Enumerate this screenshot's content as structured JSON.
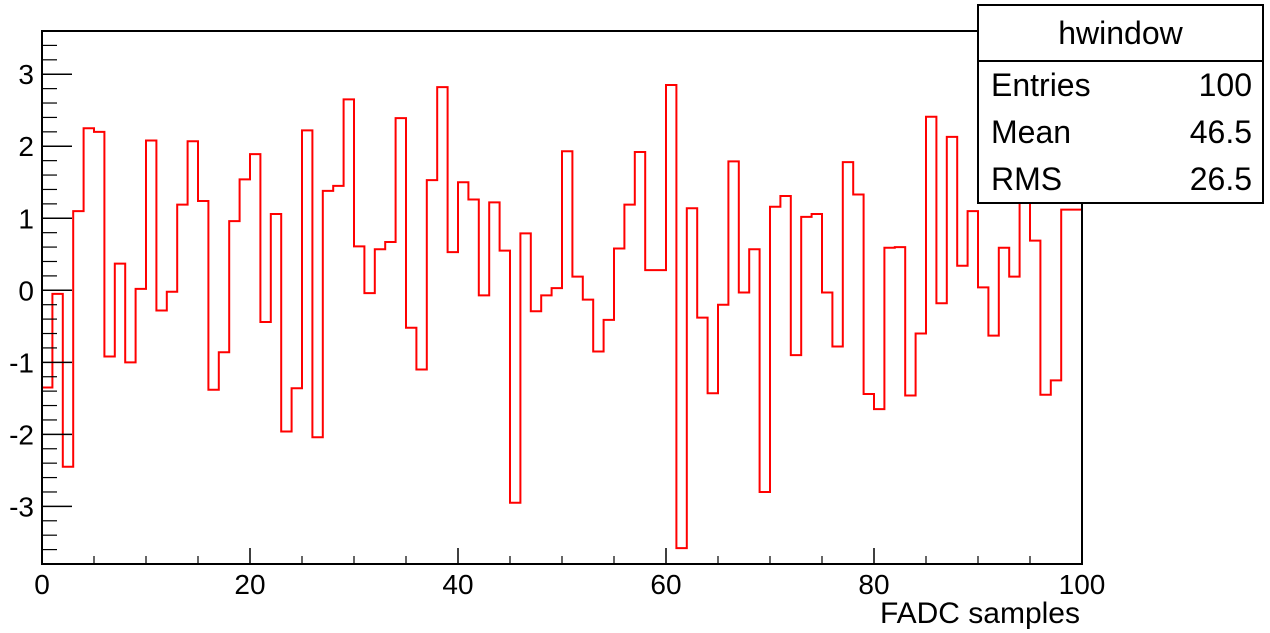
{
  "chart_data": {
    "type": "histogram",
    "title": "",
    "xlabel": "FADC samples",
    "ylabel": "",
    "xlim": [
      0,
      100
    ],
    "ylim": [
      -3.8,
      3.6
    ],
    "x_ticks": [
      0,
      20,
      40,
      60,
      80,
      100
    ],
    "y_ticks": [
      -3,
      -2,
      -1,
      0,
      1,
      2,
      3
    ],
    "line_color": "#ff0000",
    "bin_width": 1,
    "values": [
      -1.35,
      -0.05,
      -2.45,
      1.1,
      2.25,
      2.2,
      -0.92,
      0.37,
      -1.0,
      0.02,
      2.08,
      -0.28,
      -0.02,
      1.19,
      2.07,
      1.24,
      -1.38,
      -0.86,
      0.96,
      1.54,
      1.89,
      -0.44,
      1.06,
      -1.96,
      -1.36,
      2.22,
      -2.04,
      1.38,
      1.45,
      2.65,
      0.61,
      -0.04,
      0.57,
      0.67,
      2.39,
      -0.52,
      -1.1,
      1.53,
      2.82,
      0.53,
      1.5,
      1.26,
      -0.07,
      1.22,
      0.55,
      -2.95,
      0.79,
      -0.29,
      -0.07,
      0.03,
      1.93,
      0.19,
      -0.13,
      -0.85,
      -0.41,
      0.58,
      1.19,
      1.92,
      0.28,
      0.28,
      2.85,
      -3.58,
      1.14,
      -0.38,
      -1.43,
      -0.2,
      1.79,
      -0.03,
      0.57,
      -2.8,
      1.16,
      1.31,
      -0.9,
      1.02,
      1.06,
      -0.03,
      -0.78,
      1.78,
      1.33,
      -1.44,
      -1.65,
      0.59,
      0.6,
      -1.46,
      -0.6,
      2.41,
      -0.18,
      2.13,
      0.34,
      1.1,
      0.04,
      -0.63,
      0.59,
      0.19,
      1.57,
      0.69,
      -1.45,
      -1.25,
      1.12,
      1.12
    ]
  },
  "stats": {
    "title": "hwindow",
    "rows": [
      {
        "label": "Entries",
        "value": "100"
      },
      {
        "label": "Mean",
        "value": "46.5"
      },
      {
        "label": "RMS",
        "value": "26.5"
      }
    ]
  }
}
